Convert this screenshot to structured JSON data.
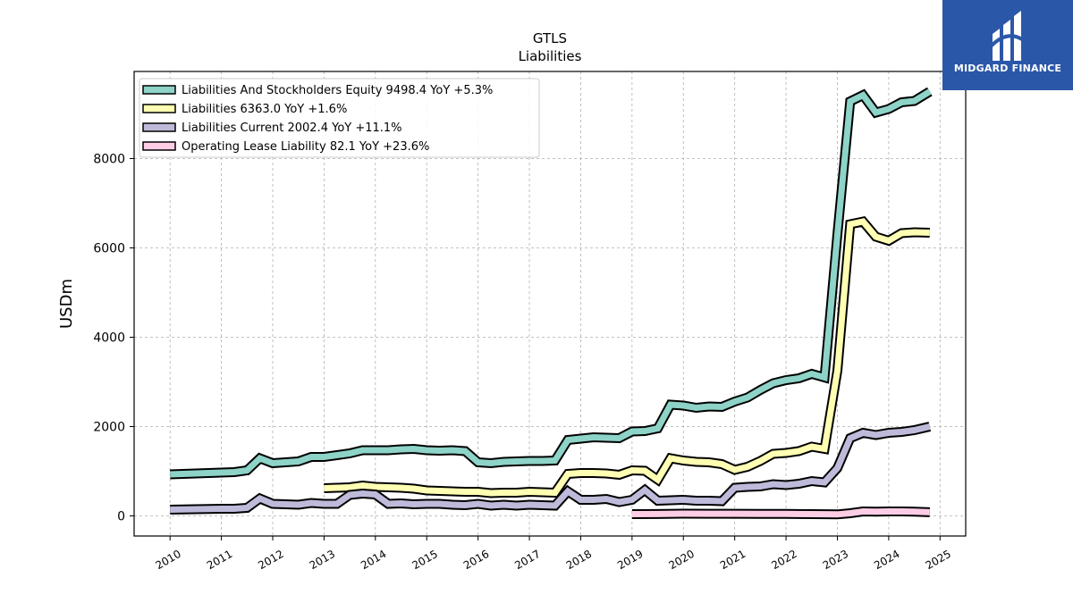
{
  "brand": {
    "name": "MIDGARD FINANCE",
    "bg_color": "#2b57a8"
  },
  "chart_data": {
    "type": "line",
    "title": "GTLS",
    "subtitle": "Liabilities",
    "ylabel": "USDm",
    "xlabel": "",
    "xlim": [
      2009.3,
      2025.5
    ],
    "ylim": [
      -450,
      9950
    ],
    "x_ticks": [
      2010,
      2011,
      2012,
      2013,
      2014,
      2015,
      2016,
      2017,
      2018,
      2019,
      2020,
      2021,
      2022,
      2023,
      2024,
      2025
    ],
    "x_tick_labels": [
      "2010",
      "2011",
      "2012",
      "2013",
      "2014",
      "2015",
      "2016",
      "2017",
      "2018",
      "2019",
      "2020",
      "2021",
      "2022",
      "2023",
      "2024",
      "2025"
    ],
    "y_ticks": [
      0,
      2000,
      4000,
      6000,
      8000
    ],
    "y_tick_labels": [
      "0",
      "2000",
      "4000",
      "6000",
      "8000"
    ],
    "grid": true,
    "legend_position": "upper-left",
    "series": [
      {
        "name": "Liabilities And Stockholders Equity",
        "legend": "Liabilities And Stockholders Equity  9498.4 YoY +5.3%",
        "color": "#8dd3c7",
        "x": [
          2010.0,
          2010.5,
          2011.0,
          2011.25,
          2011.5,
          2011.75,
          2012.0,
          2012.25,
          2012.5,
          2012.75,
          2013.0,
          2013.25,
          2013.5,
          2013.75,
          2014.0,
          2014.25,
          2014.5,
          2014.75,
          2015.0,
          2015.25,
          2015.5,
          2015.75,
          2016.0,
          2016.25,
          2016.5,
          2016.75,
          2017.0,
          2017.25,
          2017.5,
          2017.75,
          2018.0,
          2018.25,
          2018.5,
          2018.75,
          2019.0,
          2019.25,
          2019.5,
          2019.75,
          2020.0,
          2020.25,
          2020.5,
          2020.75,
          2021.0,
          2021.25,
          2021.5,
          2021.75,
          2022.0,
          2022.25,
          2022.5,
          2022.75,
          2023.0,
          2023.25,
          2023.5,
          2023.75,
          2024.0,
          2024.25,
          2024.5,
          2024.8
        ],
        "y": [
          930,
          950,
          970,
          980,
          1020,
          1290,
          1180,
          1200,
          1220,
          1320,
          1320,
          1360,
          1400,
          1470,
          1470,
          1470,
          1490,
          1500,
          1470,
          1460,
          1470,
          1450,
          1200,
          1180,
          1210,
          1220,
          1230,
          1230,
          1240,
          1700,
          1730,
          1760,
          1750,
          1740,
          1890,
          1900,
          1960,
          2490,
          2470,
          2420,
          2450,
          2440,
          2560,
          2650,
          2820,
          2970,
          3040,
          3080,
          3180,
          3100,
          6300,
          9280,
          9420,
          9030,
          9110,
          9260,
          9290,
          9500
        ]
      },
      {
        "name": "Liabilities",
        "legend": "Liabilities  6363.0 YoY +1.6%",
        "color": "#ffffb3",
        "x": [
          2013.0,
          2013.25,
          2013.5,
          2013.75,
          2014.0,
          2014.25,
          2014.5,
          2014.75,
          2015.0,
          2015.25,
          2015.5,
          2015.75,
          2016.0,
          2016.25,
          2016.5,
          2016.75,
          2017.0,
          2017.25,
          2017.5,
          2017.75,
          2018.0,
          2018.25,
          2018.5,
          2018.75,
          2019.0,
          2019.25,
          2019.5,
          2019.75,
          2020.0,
          2020.25,
          2020.5,
          2020.75,
          2021.0,
          2021.25,
          2021.5,
          2021.75,
          2022.0,
          2022.25,
          2022.5,
          2022.75,
          2023.0,
          2023.25,
          2023.5,
          2023.75,
          2024.0,
          2024.25,
          2024.5,
          2024.8
        ],
        "y": [
          620,
          630,
          640,
          680,
          650,
          640,
          630,
          610,
          570,
          560,
          550,
          540,
          540,
          510,
          520,
          520,
          540,
          530,
          520,
          940,
          960,
          960,
          950,
          920,
          1020,
          1010,
          810,
          1290,
          1240,
          1210,
          1200,
          1160,
          1030,
          1100,
          1230,
          1390,
          1410,
          1450,
          1550,
          1500,
          3250,
          6530,
          6590,
          6250,
          6160,
          6330,
          6350,
          6340
        ]
      },
      {
        "name": "Liabilities Current",
        "legend": "Liabilities Current  2002.4 YoY +11.1%",
        "color": "#bebada",
        "x": [
          2010.0,
          2010.5,
          2011.0,
          2011.25,
          2011.5,
          2011.75,
          2012.0,
          2012.25,
          2012.5,
          2012.75,
          2013.0,
          2013.25,
          2013.5,
          2013.75,
          2014.0,
          2014.25,
          2014.5,
          2014.75,
          2015.0,
          2015.25,
          2015.5,
          2015.75,
          2016.0,
          2016.25,
          2016.5,
          2016.75,
          2017.0,
          2017.25,
          2017.5,
          2017.75,
          2018.0,
          2018.25,
          2018.5,
          2018.75,
          2019.0,
          2019.25,
          2019.5,
          2019.75,
          2020.0,
          2020.25,
          2020.5,
          2020.75,
          2021.0,
          2021.25,
          2021.5,
          2021.75,
          2022.0,
          2022.25,
          2022.5,
          2022.75,
          2023.0,
          2023.25,
          2023.5,
          2023.75,
          2024.0,
          2024.25,
          2024.5,
          2024.8
        ],
        "y": [
          140,
          150,
          160,
          160,
          180,
          390,
          270,
          260,
          250,
          290,
          270,
          270,
          470,
          500,
          480,
          270,
          280,
          260,
          270,
          270,
          250,
          240,
          270,
          230,
          250,
          230,
          250,
          240,
          230,
          550,
          360,
          360,
          380,
          310,
          360,
          580,
          340,
          350,
          360,
          340,
          340,
          330,
          630,
          650,
          660,
          710,
          690,
          720,
          780,
          750,
          1070,
          1740,
          1860,
          1810,
          1860,
          1880,
          1920,
          2000
        ]
      },
      {
        "name": "Operating Lease Liability",
        "legend": "Operating Lease Liability  82.1 YoY +23.6%",
        "color": "#fccde5",
        "x": [
          2019.0,
          2019.5,
          2020.0,
          2020.5,
          2021.0,
          2021.5,
          2022.0,
          2022.5,
          2023.0,
          2023.25,
          2023.5,
          2023.75,
          2024.0,
          2024.25,
          2024.5,
          2024.8
        ],
        "y": [
          40,
          42,
          50,
          48,
          47,
          45,
          44,
          40,
          35,
          60,
          100,
          95,
          100,
          100,
          95,
          82
        ]
      }
    ]
  }
}
